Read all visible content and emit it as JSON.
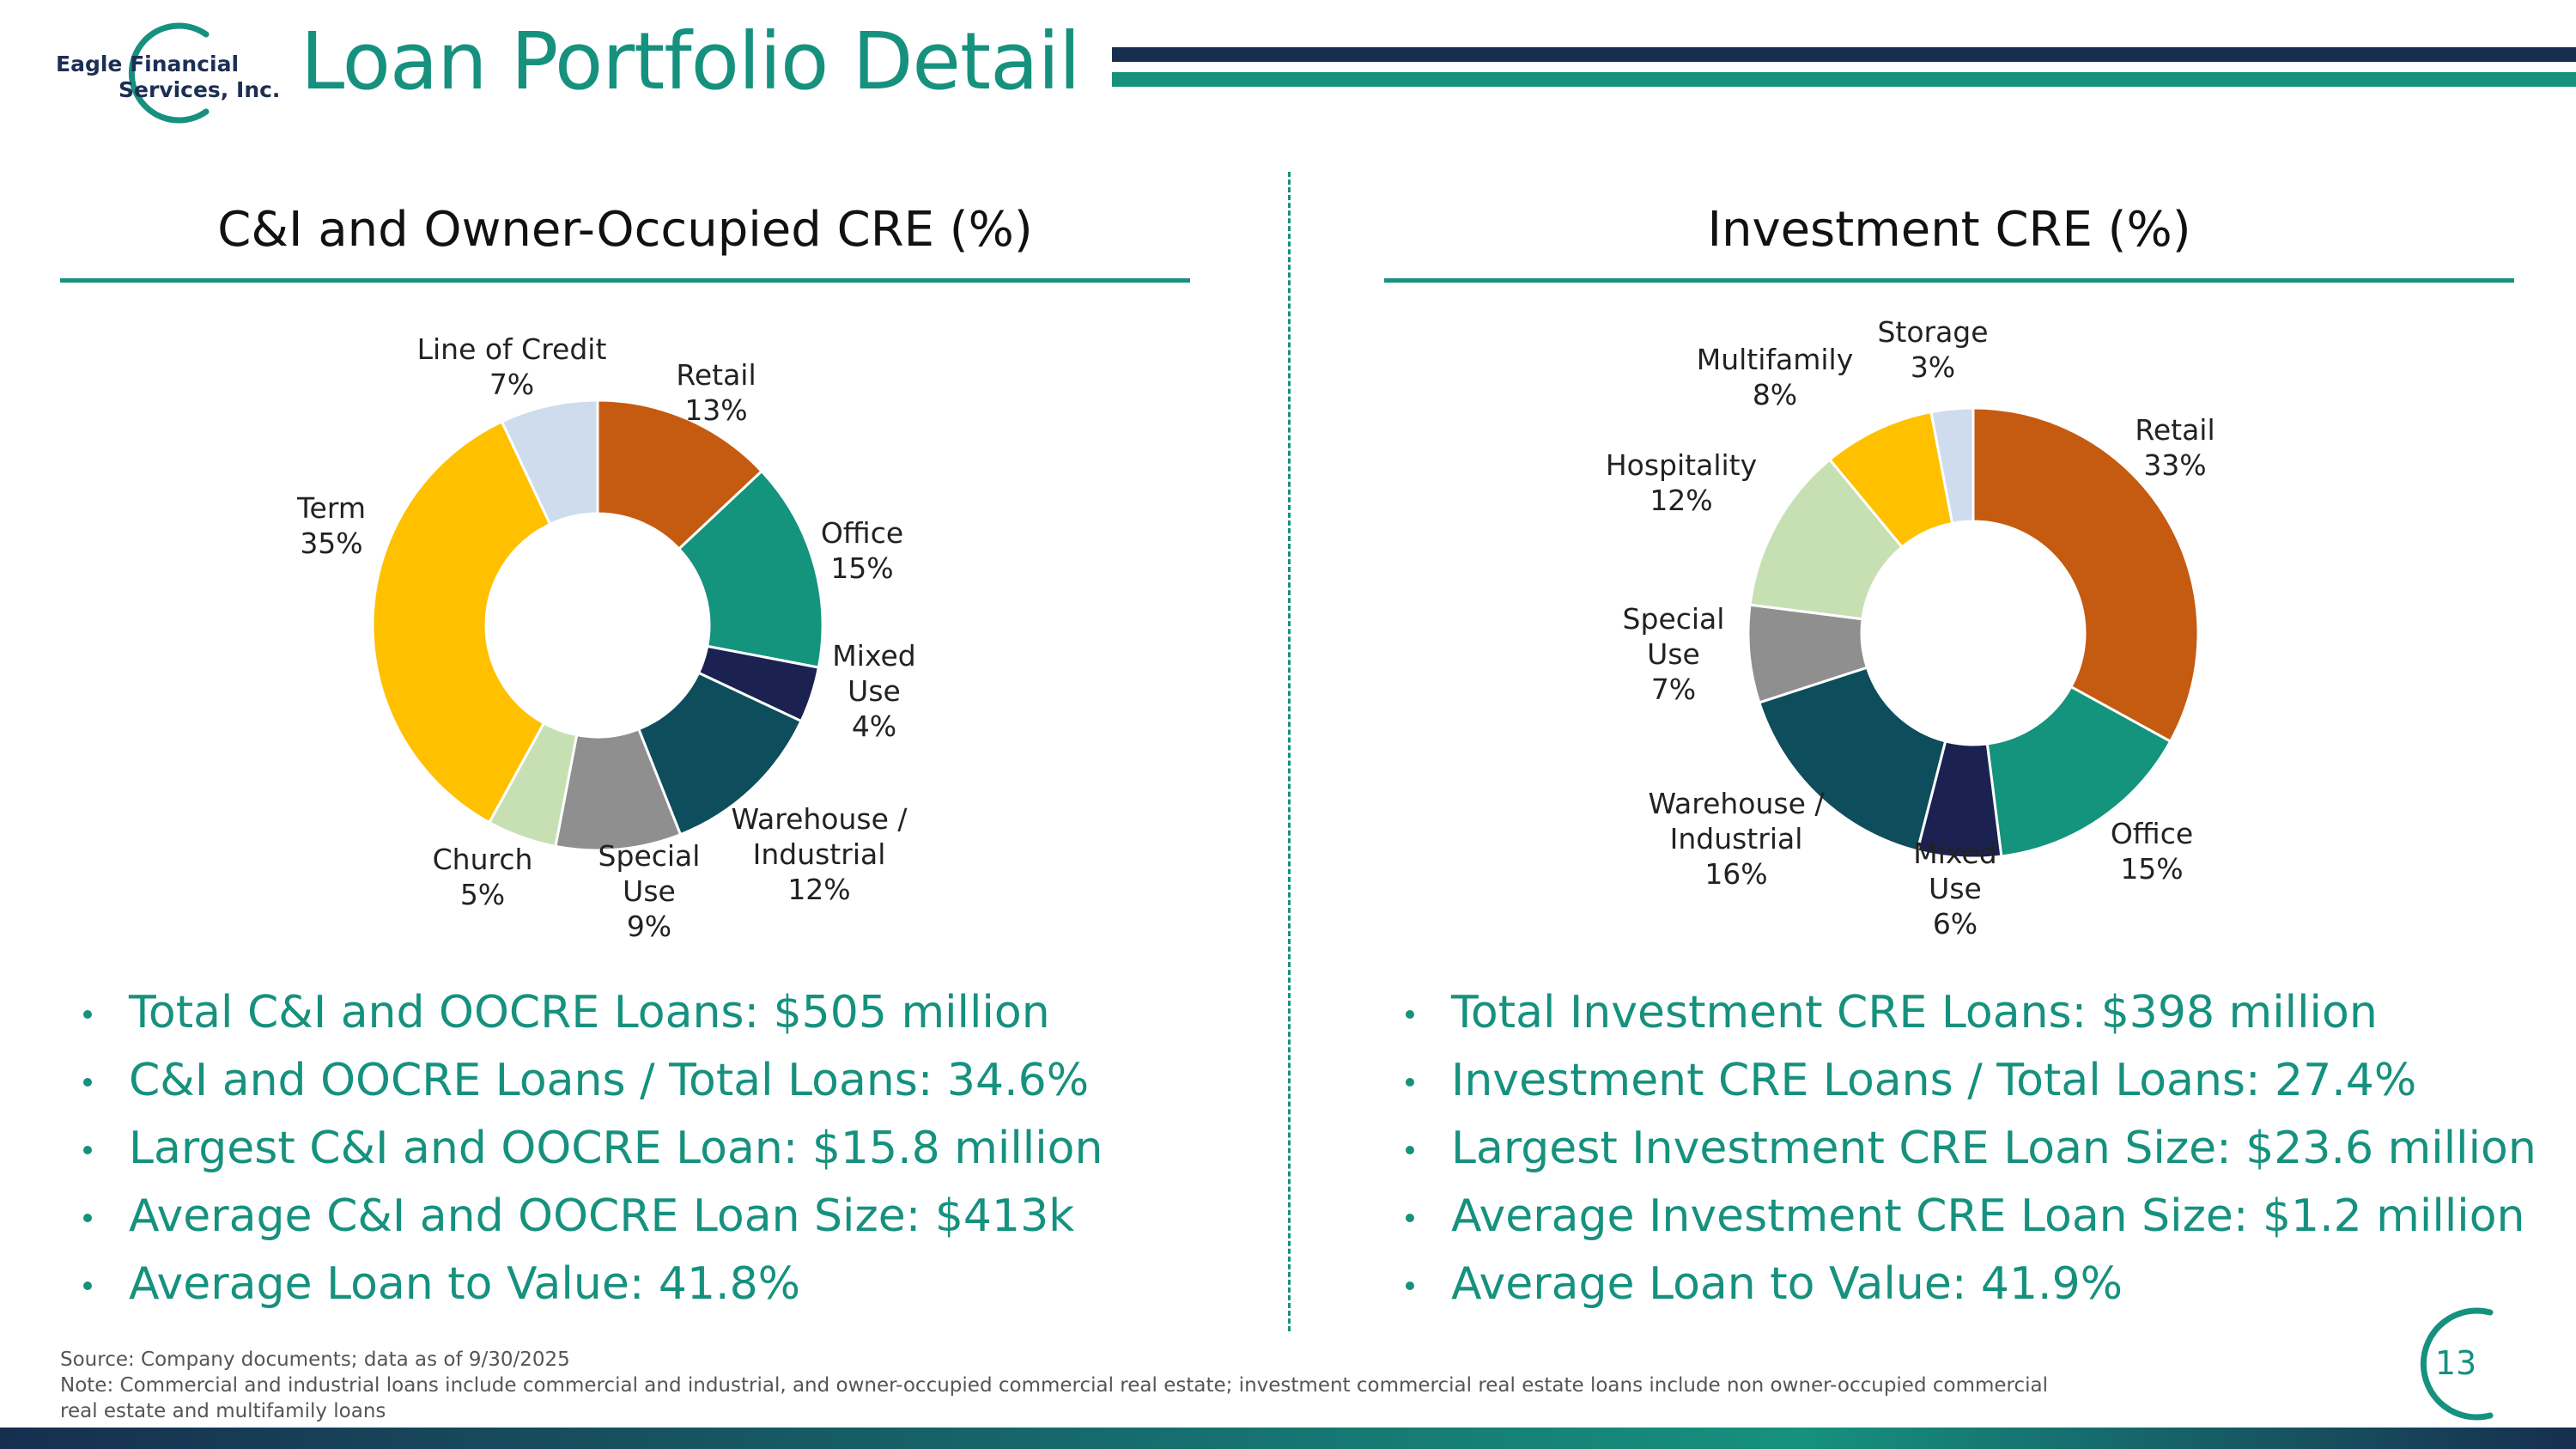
{
  "header": {
    "logo_line1": "Eagle Financial",
    "logo_line2": "Services, Inc.",
    "title": "Loan Portfolio Detail"
  },
  "chart_data": [
    {
      "type": "pie",
      "donut": true,
      "title": "C&I and Owner-Occupied CRE (%)",
      "categories": [
        "Retail",
        "Office",
        "Mixed Use",
        "Warehouse / Industrial",
        "Special Use",
        "Church",
        "Term",
        "Line of Credit"
      ],
      "values": [
        13,
        15,
        4,
        12,
        9,
        5,
        35,
        7
      ],
      "labels": [
        [
          "Retail",
          "13%"
        ],
        [
          "Office",
          "15%"
        ],
        [
          "Mixed",
          "Use",
          "4%"
        ],
        [
          "Warehouse /",
          "Industrial",
          "12%"
        ],
        [
          "Special",
          "Use",
          "9%"
        ],
        [
          "Church",
          "5%"
        ],
        [
          "Term",
          "35%"
        ],
        [
          "Line of Credit",
          "7%"
        ]
      ],
      "colors": [
        "#c55a11",
        "#14937d",
        "#1b2150",
        "#0e4d5c",
        "#8f8f8f",
        "#c7e0b3",
        "#ffc000",
        "#cfdcee"
      ]
    },
    {
      "type": "pie",
      "donut": true,
      "title": "Investment CRE (%)",
      "categories": [
        "Retail",
        "Office",
        "Mixed Use",
        "Warehouse / Industrial",
        "Special Use",
        "Hospitality",
        "Multifamily",
        "Storage"
      ],
      "values": [
        33,
        15,
        6,
        16,
        7,
        12,
        8,
        3
      ],
      "labels": [
        [
          "Retail",
          "33%"
        ],
        [
          "Office",
          "15%"
        ],
        [
          "Mixed",
          "Use",
          "6%"
        ],
        [
          "Warehouse /",
          "Industrial",
          "16%"
        ],
        [
          "Special",
          "Use",
          "7%"
        ],
        [
          "Hospitality",
          "12%"
        ],
        [
          "Multifamily",
          "8%"
        ],
        [
          "Storage",
          "3%"
        ]
      ],
      "colors": [
        "#c55a11",
        "#14937d",
        "#1b2150",
        "#0e4d5c",
        "#8f8f8f",
        "#c7e0b3",
        "#ffc000",
        "#cfdcee"
      ]
    }
  ],
  "left_bullets": [
    "Total C&I and OOCRE Loans: $505 million",
    "C&I and OOCRE Loans / Total Loans: 34.6%",
    "Largest C&I and OOCRE Loan: $15.8 million",
    "Average C&I and OOCRE Loan Size: $413k",
    "Average Loan to Value: 41.8%"
  ],
  "right_bullets": [
    "Total Investment CRE Loans: $398 million",
    "Investment CRE Loans / Total Loans: 27.4%",
    "Largest Investment CRE Loan Size: $23.6 million",
    "Average Investment CRE Loan Size: $1.2 million",
    "Average Loan to Value: 41.9%"
  ],
  "footer": {
    "source": "Source: Company documents; data as of 9/30/2025",
    "note_line1": "Note: Commercial and industrial loans include commercial and industrial, and owner-occupied commercial real estate; investment commercial real estate loans include non owner-occupied commercial",
    "note_line2": "real estate and multifamily loans",
    "page_number": "13"
  }
}
